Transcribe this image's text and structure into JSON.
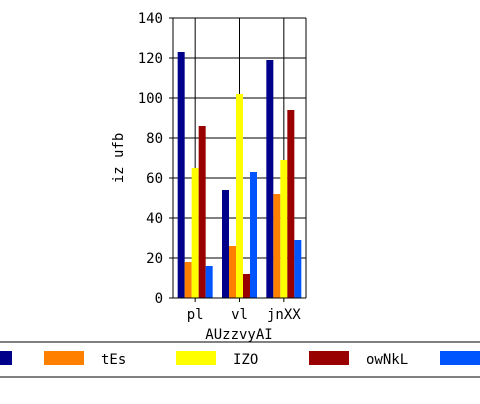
{
  "chart_data": {
    "type": "bar",
    "xlabel": "AUzzvyAI",
    "ylabel": "iz ufb",
    "categories": [
      "pl",
      "vl",
      "jnXX"
    ],
    "ylim": [
      0,
      140
    ],
    "yticks": [
      0,
      20,
      40,
      60,
      80,
      100,
      120,
      140
    ],
    "grid": true,
    "legend_position": "bottom",
    "series": [
      {
        "name": "",
        "color": "#00008b",
        "values": [
          123,
          54,
          119
        ]
      },
      {
        "name": "tEs",
        "color": "#ff7f00",
        "values": [
          18,
          26,
          52
        ]
      },
      {
        "name": "IZO",
        "color": "#ffff00",
        "values": [
          65,
          102,
          69
        ]
      },
      {
        "name": "owNkL",
        "color": "#990000",
        "values": [
          86,
          12,
          94
        ]
      },
      {
        "name": "",
        "color": "#0055ff",
        "values": [
          16,
          63,
          29
        ]
      }
    ]
  }
}
